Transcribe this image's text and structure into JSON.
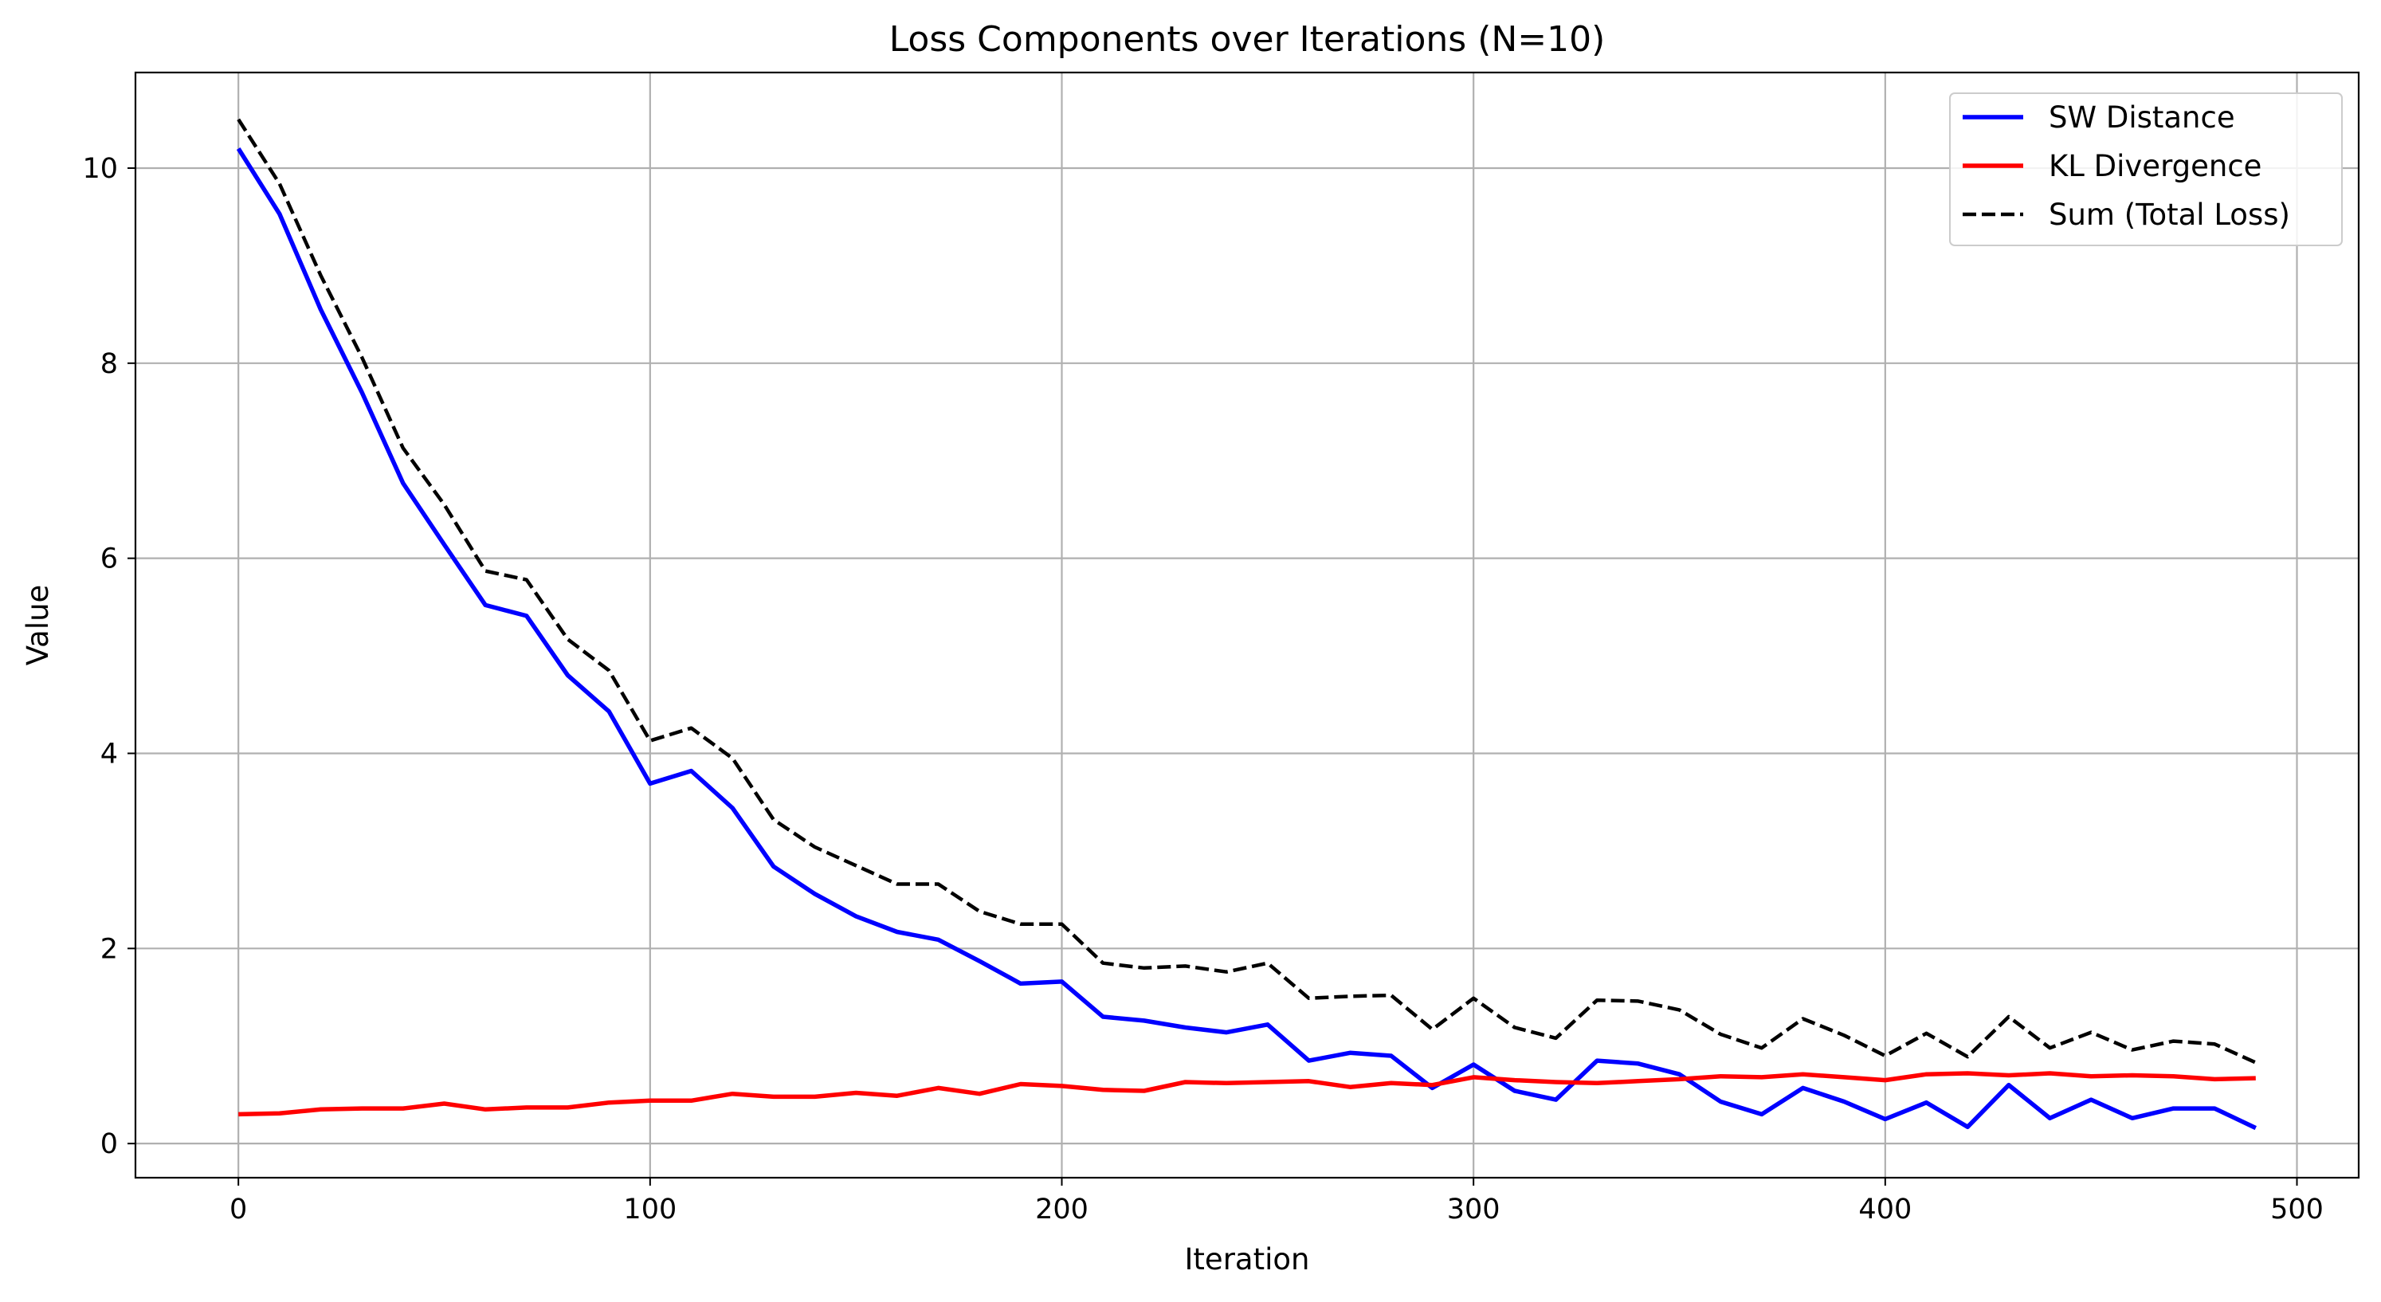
{
  "chart_data": {
    "type": "line",
    "title": "Loss Components over Iterations (N=10)",
    "xlabel": "Iteration",
    "ylabel": "Value",
    "xlim": [
      -25,
      515
    ],
    "ylim": [
      -0.35,
      10.98
    ],
    "grid": true,
    "legend_position": "upper right",
    "xticks": [
      0,
      100,
      200,
      300,
      400,
      500
    ],
    "yticks": [
      0,
      2,
      4,
      6,
      8,
      10
    ],
    "x": [
      0,
      10,
      20,
      30,
      40,
      50,
      60,
      70,
      80,
      90,
      100,
      110,
      120,
      130,
      140,
      150,
      160,
      170,
      180,
      190,
      200,
      210,
      220,
      230,
      240,
      250,
      260,
      270,
      280,
      290,
      300,
      310,
      320,
      330,
      340,
      350,
      360,
      370,
      380,
      390,
      400,
      410,
      420,
      430,
      440,
      450,
      460,
      470,
      480,
      490
    ],
    "series": [
      {
        "name": "SW Distance",
        "color": "#0000ff",
        "style": "solid",
        "values": [
          10.2,
          9.53,
          8.55,
          7.7,
          6.77,
          6.14,
          5.52,
          5.41,
          4.8,
          4.43,
          3.69,
          3.82,
          3.44,
          2.84,
          2.56,
          2.33,
          2.17,
          2.09,
          1.87,
          1.64,
          1.66,
          1.3,
          1.26,
          1.19,
          1.14,
          1.22,
          0.85,
          0.93,
          0.9,
          0.57,
          0.81,
          0.54,
          0.45,
          0.85,
          0.82,
          0.71,
          0.43,
          0.3,
          0.57,
          0.43,
          0.25,
          0.42,
          0.17,
          0.6,
          0.26,
          0.45,
          0.26,
          0.36,
          0.36,
          0.16
        ]
      },
      {
        "name": "KL Divergence",
        "color": "#ff0000",
        "style": "solid",
        "values": [
          0.3,
          0.31,
          0.35,
          0.36,
          0.36,
          0.41,
          0.35,
          0.37,
          0.37,
          0.42,
          0.44,
          0.44,
          0.51,
          0.48,
          0.48,
          0.52,
          0.49,
          0.57,
          0.51,
          0.61,
          0.59,
          0.55,
          0.54,
          0.63,
          0.62,
          0.63,
          0.64,
          0.58,
          0.62,
          0.6,
          0.68,
          0.65,
          0.63,
          0.62,
          0.64,
          0.66,
          0.69,
          0.68,
          0.71,
          0.68,
          0.65,
          0.71,
          0.72,
          0.7,
          0.72,
          0.69,
          0.7,
          0.69,
          0.66,
          0.67
        ]
      },
      {
        "name": "Sum (Total Loss)",
        "color": "#000000",
        "style": "dashed",
        "values": [
          10.5,
          9.84,
          8.9,
          8.06,
          7.13,
          6.55,
          5.87,
          5.78,
          5.17,
          4.85,
          4.13,
          4.26,
          3.95,
          3.32,
          3.04,
          2.85,
          2.66,
          2.66,
          2.38,
          2.25,
          2.25,
          1.85,
          1.8,
          1.82,
          1.76,
          1.85,
          1.49,
          1.51,
          1.52,
          1.17,
          1.49,
          1.19,
          1.08,
          1.47,
          1.46,
          1.37,
          1.12,
          0.98,
          1.28,
          1.11,
          0.9,
          1.13,
          0.89,
          1.3,
          0.98,
          1.14,
          0.96,
          1.05,
          1.02,
          0.83
        ]
      }
    ]
  }
}
